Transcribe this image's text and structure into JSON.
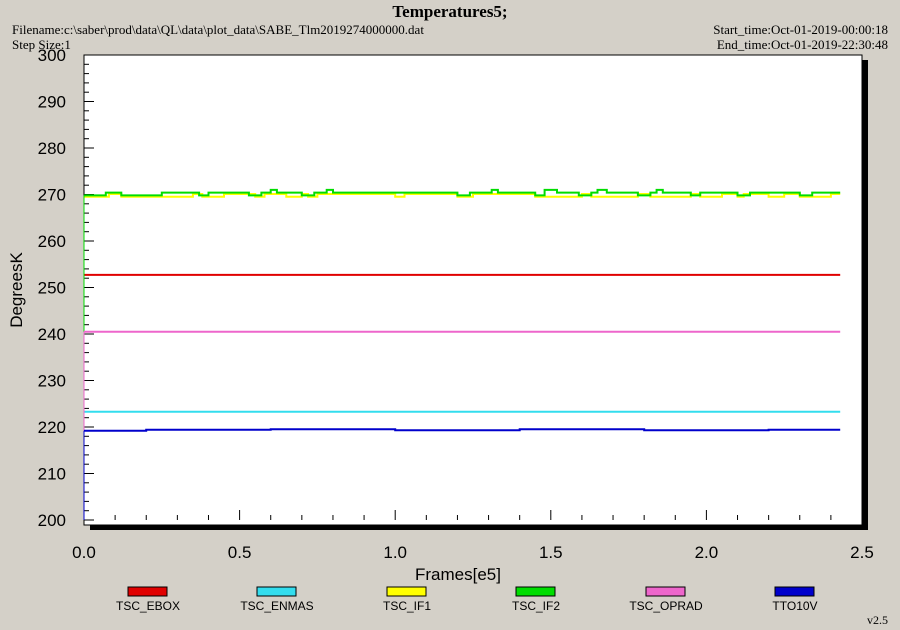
{
  "header": {
    "title": "Temperatures5;",
    "filename": "Filename:c:\\saber\\prod\\data\\QL\\data\\plot_data\\SABE_Tlm2019274000000.dat",
    "step_size": "Step Size:1",
    "start_time": "Start_time:Oct-01-2019-00:00:18",
    "end_time": "End_time:Oct-01-2019-22:30:48"
  },
  "footer": {
    "version": "v2.5"
  },
  "chart_data": {
    "type": "line",
    "title": "Temperatures5;",
    "xlabel": "Frames[e5]",
    "ylabel": "DegreesK",
    "xlim": [
      0,
      2.5
    ],
    "ylim": [
      200,
      300
    ],
    "xticks": [
      0,
      0.5,
      1.0,
      1.5,
      2.0,
      2.5
    ],
    "xtick_labels": [
      "0.0",
      "0.5",
      "1.0",
      "1.5",
      "2.0",
      "2.5"
    ],
    "yticks": [
      200,
      210,
      220,
      230,
      240,
      250,
      260,
      270,
      280,
      290,
      300
    ],
    "ytick_labels": [
      "200",
      "210",
      "220",
      "230",
      "240",
      "250",
      "260",
      "270",
      "280",
      "290",
      "300"
    ],
    "grid": false,
    "legend_position": "bottom",
    "series": [
      {
        "name": "TSC_EBOX",
        "color": "#e00000",
        "x": [
          0,
          2.43
        ],
        "y": [
          252.7,
          252.7
        ]
      },
      {
        "name": "TSC_ENMAS",
        "color": "#33ddee",
        "x": [
          0,
          2.43
        ],
        "y": [
          223.3,
          223.3
        ]
      },
      {
        "name": "TSC_IF1",
        "color": "#ffff00",
        "x": [
          0,
          0.08,
          0.08,
          0.12,
          0.12,
          0.35,
          0.35,
          0.38,
          0.38,
          0.45,
          0.45,
          0.55,
          0.55,
          0.58,
          0.58,
          0.65,
          0.65,
          0.7,
          0.7,
          0.72,
          0.72,
          0.75,
          0.75,
          1.0,
          1.0,
          1.03,
          1.03,
          1.2,
          1.2,
          1.25,
          1.25,
          1.45,
          1.45,
          1.6,
          1.6,
          1.63,
          1.63,
          1.78,
          1.78,
          1.82,
          1.82,
          1.95,
          1.95,
          1.98,
          1.98,
          2.05,
          2.05,
          2.1,
          2.1,
          2.12,
          2.12,
          2.2,
          2.2,
          2.25,
          2.25,
          2.3,
          2.3,
          2.4,
          2.4,
          2.43
        ],
        "y": [
          269.5,
          269.5,
          270.1,
          270.1,
          269.5,
          269.5,
          270.1,
          270.1,
          269.5,
          269.5,
          270.1,
          270.1,
          269.5,
          269.5,
          270.1,
          270.1,
          269.5,
          269.5,
          270.1,
          270.1,
          269.5,
          269.5,
          270.1,
          270.1,
          269.5,
          269.5,
          270.1,
          270.1,
          269.5,
          269.5,
          270.1,
          270.1,
          269.5,
          269.5,
          270.1,
          270.1,
          269.5,
          269.5,
          270.1,
          270.1,
          269.5,
          269.5,
          270.1,
          270.1,
          269.5,
          269.5,
          270.1,
          270.1,
          269.5,
          269.5,
          270.1,
          270.1,
          269.5,
          269.5,
          270.1,
          270.1,
          269.5,
          269.5,
          270.1,
          270.1
        ]
      },
      {
        "name": "TSC_IF2",
        "color": "#00dd00",
        "x": [
          0,
          0.07,
          0.07,
          0.12,
          0.12,
          0.25,
          0.25,
          0.37,
          0.37,
          0.4,
          0.4,
          0.53,
          0.53,
          0.57,
          0.57,
          0.6,
          0.6,
          0.62,
          0.62,
          0.7,
          0.7,
          0.74,
          0.74,
          0.78,
          0.78,
          0.8,
          0.8,
          1.0,
          1.0,
          1.2,
          1.2,
          1.24,
          1.24,
          1.31,
          1.31,
          1.33,
          1.33,
          1.45,
          1.45,
          1.48,
          1.48,
          1.52,
          1.52,
          1.59,
          1.59,
          1.63,
          1.63,
          1.65,
          1.65,
          1.68,
          1.68,
          1.78,
          1.78,
          1.82,
          1.82,
          1.84,
          1.84,
          1.86,
          1.86,
          1.95,
          1.95,
          1.98,
          1.98,
          2.1,
          2.1,
          2.14,
          2.14,
          2.3,
          2.3,
          2.34,
          2.34,
          2.43
        ],
        "y": [
          269.8,
          269.8,
          270.4,
          270.4,
          269.8,
          269.8,
          270.4,
          270.4,
          269.8,
          269.8,
          270.4,
          270.4,
          269.8,
          269.8,
          270.4,
          270.4,
          271.0,
          271.0,
          270.4,
          270.4,
          269.8,
          269.8,
          270.4,
          270.4,
          271.0,
          271.0,
          270.4,
          270.4,
          270.4,
          270.4,
          269.8,
          269.8,
          270.4,
          270.4,
          271.0,
          271.0,
          270.4,
          270.4,
          269.8,
          269.8,
          271.0,
          271.0,
          270.4,
          270.4,
          269.8,
          269.8,
          270.4,
          270.4,
          271.0,
          271.0,
          270.4,
          270.4,
          269.8,
          269.8,
          270.4,
          270.4,
          271.0,
          271.0,
          270.4,
          270.4,
          269.8,
          269.8,
          270.4,
          270.4,
          269.8,
          269.8,
          270.4,
          270.4,
          269.8,
          269.8,
          270.4,
          270.4
        ]
      },
      {
        "name": "TSC_OPRAD",
        "color": "#ee66cc",
        "x": [
          0,
          2.43
        ],
        "y": [
          240.5,
          240.5
        ]
      },
      {
        "name": "TTO10V",
        "color": "#0000cc",
        "x": [
          0,
          0.2,
          0.2,
          0.6,
          0.6,
          1.0,
          1.0,
          1.4,
          1.4,
          1.8,
          1.8,
          2.2,
          2.2,
          2.43
        ],
        "y": [
          219.2,
          219.2,
          219.4,
          219.4,
          219.5,
          219.5,
          219.3,
          219.3,
          219.5,
          219.5,
          219.3,
          219.3,
          219.4,
          219.4
        ]
      }
    ]
  }
}
